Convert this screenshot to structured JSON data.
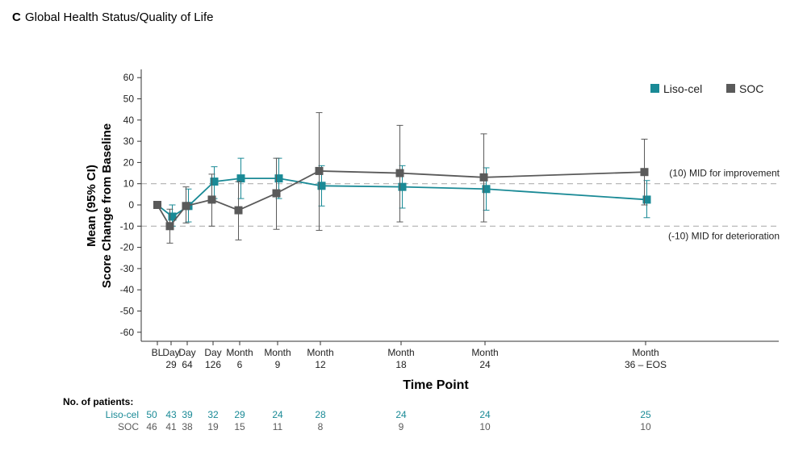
{
  "panel": {
    "letter": "C",
    "title": "Global Health Status/Quality of Life"
  },
  "colors": {
    "liso": "#1a8a96",
    "soc": "#5a5a5a",
    "axis": "#333333",
    "ref": "#b0b0b0"
  },
  "chart_data": {
    "type": "line",
    "title": "Global Health Status/Quality of Life",
    "xlabel": "Time Point",
    "ylabel_line1": "Mean (95% CI)",
    "ylabel_line2": "Score Change from Baseline",
    "ylim": [
      -60,
      60
    ],
    "y_ticks": [
      60,
      50,
      40,
      30,
      20,
      10,
      0,
      -10,
      -20,
      -30,
      -40,
      -50,
      -60
    ],
    "x_ticks": [
      {
        "line1": "BL",
        "line2": "",
        "x": 0
      },
      {
        "line1": "Day",
        "line2": "29",
        "x": 29
      },
      {
        "line1": "Day",
        "line2": "64",
        "x": 64
      },
      {
        "line1": "Day",
        "line2": "126",
        "x": 126
      },
      {
        "line1": "Month",
        "line2": "6",
        "x": 180
      },
      {
        "line1": "Month",
        "line2": "9",
        "x": 270
      },
      {
        "line1": "Month",
        "line2": "12",
        "x": 365
      },
      {
        "line1": "Month",
        "line2": "18",
        "x": 548
      },
      {
        "line1": "Month",
        "line2": "24",
        "x": 730
      },
      {
        "line1": "Month",
        "line2": "36 – EOS",
        "x": 1095
      }
    ],
    "xlim": [
      0,
      1300
    ],
    "reference_lines": [
      {
        "y": 10,
        "label": "(10) MID for improvement"
      },
      {
        "y": -10,
        "label": "(-10) MID for deterioration"
      }
    ],
    "series": [
      {
        "name": "Liso-cel",
        "color": "#1a8a96",
        "x": [
          0,
          29,
          64,
          126,
          180,
          270,
          365,
          548,
          730,
          1095
        ],
        "y": [
          0,
          -5.5,
          -0.5,
          11,
          12.5,
          12.5,
          9,
          8.5,
          7.5,
          2.5
        ],
        "lower": [
          0,
          -10,
          -8,
          3,
          3,
          3,
          -0.5,
          -1.5,
          -2.5,
          -6
        ],
        "upper": [
          0,
          0,
          7.5,
          18,
          22,
          22,
          18.5,
          18.5,
          17.5,
          11.5
        ]
      },
      {
        "name": "SOC",
        "color": "#5a5a5a",
        "x": [
          0,
          29,
          64,
          126,
          180,
          270,
          365,
          548,
          730,
          1095
        ],
        "y": [
          0,
          -10,
          -0.5,
          2.5,
          -2.5,
          5.5,
          16,
          15,
          13,
          15.5
        ],
        "lower": [
          0,
          -18,
          -8.5,
          -10,
          -16.5,
          -11.5,
          -12,
          -8,
          -8,
          0
        ],
        "upper": [
          0,
          -2,
          8.5,
          14.5,
          11,
          22,
          43.5,
          37.5,
          33.5,
          31
        ]
      }
    ]
  },
  "patients": {
    "title": "No. of patients:",
    "rows": [
      {
        "label": "Liso-cel",
        "color": "#1a8a96",
        "values": [
          "50",
          "43",
          "39",
          "32",
          "29",
          "24",
          "28",
          "24",
          "24",
          "25"
        ]
      },
      {
        "label": "SOC",
        "color": "#5a5a5a",
        "values": [
          "46",
          "41",
          "38",
          "19",
          "15",
          "11",
          "8",
          "9",
          "10",
          "10"
        ]
      }
    ]
  }
}
